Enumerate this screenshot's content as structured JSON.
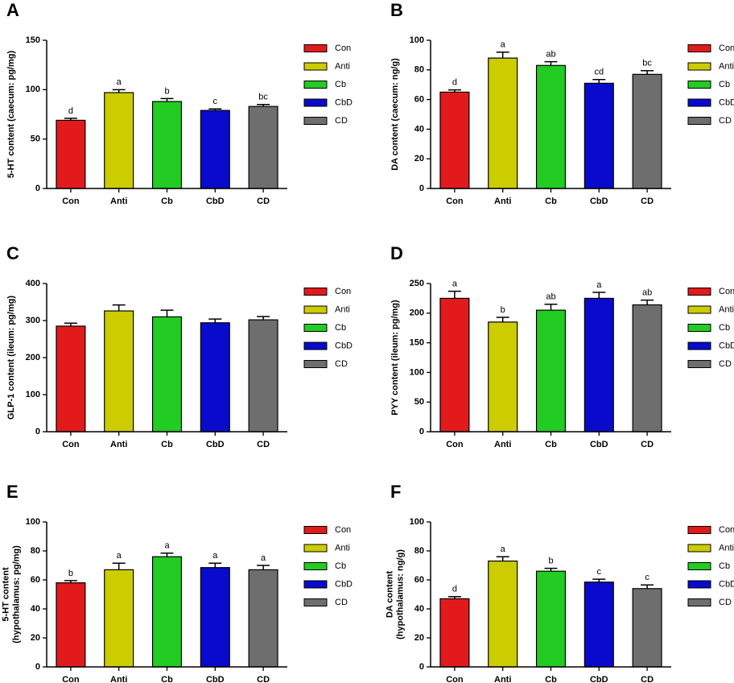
{
  "chart_data": [
    {
      "type": "bar",
      "label": "A",
      "ylabel": [
        "5-HT content (caecum: pg/mg)"
      ],
      "categories": [
        "Con",
        "Anti",
        "Cb",
        "CbD",
        "CD"
      ],
      "values": [
        69,
        97,
        88,
        79,
        83
      ],
      "errors": [
        2,
        3,
        3,
        1.5,
        2
      ],
      "annotations": [
        "d",
        "a",
        "b",
        "c",
        "bc"
      ],
      "colors": [
        "#e31a1c",
        "#cccc00",
        "#22cc22",
        "#0a0acd",
        "#6e6e6e"
      ],
      "ylim": [
        0,
        150
      ],
      "yticks": [
        0,
        50,
        100,
        150
      ]
    },
    {
      "type": "bar",
      "label": "B",
      "ylabel": [
        "DA content (caecum: ng/g)"
      ],
      "categories": [
        "Con",
        "Anti",
        "Cb",
        "CbD",
        "CD"
      ],
      "values": [
        65,
        88,
        83,
        71,
        77
      ],
      "errors": [
        1.5,
        4,
        2.5,
        2.5,
        2.5
      ],
      "annotations": [
        "d",
        "a",
        "ab",
        "cd",
        "bc"
      ],
      "colors": [
        "#e31a1c",
        "#cccc00",
        "#22cc22",
        "#0a0acd",
        "#6e6e6e"
      ],
      "ylim": [
        0,
        100
      ],
      "yticks": [
        0,
        20,
        40,
        60,
        80,
        100
      ]
    },
    {
      "type": "bar",
      "label": "C",
      "ylabel": [
        "GLP-1 content (ileum: pg/mg)"
      ],
      "categories": [
        "Con",
        "Anti",
        "Cb",
        "CbD",
        "CD"
      ],
      "values": [
        285,
        326,
        310,
        294,
        302
      ],
      "errors": [
        8,
        16,
        18,
        10,
        9
      ],
      "colors": [
        "#e31a1c",
        "#cccc00",
        "#22cc22",
        "#0a0acd",
        "#6e6e6e"
      ],
      "ylim": [
        0,
        400
      ],
      "yticks": [
        0,
        100,
        200,
        300,
        400
      ]
    },
    {
      "type": "bar",
      "label": "D",
      "ylabel": [
        "PYY content (ileum: pg/mg)"
      ],
      "categories": [
        "Con",
        "Anti",
        "Cb",
        "CbD",
        "CD"
      ],
      "values": [
        225,
        185,
        205,
        225,
        214
      ],
      "errors": [
        12,
        8,
        10,
        10,
        8
      ],
      "annotations": [
        "a",
        "b",
        "ab",
        "a",
        "ab"
      ],
      "colors": [
        "#e31a1c",
        "#cccc00",
        "#22cc22",
        "#0a0acd",
        "#6e6e6e"
      ],
      "ylim": [
        0,
        250
      ],
      "yticks": [
        0,
        50,
        100,
        150,
        200,
        250
      ]
    },
    {
      "type": "bar",
      "label": "E",
      "ylabel": [
        "5-HT content",
        "(hypothalamus: pg/mg)"
      ],
      "categories": [
        "Con",
        "Anti",
        "Cb",
        "CbD",
        "CD"
      ],
      "values": [
        58,
        67,
        76,
        68.5,
        67
      ],
      "errors": [
        1.5,
        4.5,
        2.5,
        3,
        3
      ],
      "annotations": [
        "b",
        "a",
        "a",
        "a",
        "a"
      ],
      "colors": [
        "#e31a1c",
        "#cccc00",
        "#22cc22",
        "#0a0acd",
        "#6e6e6e"
      ],
      "ylim": [
        0,
        100
      ],
      "yticks": [
        0,
        20,
        40,
        60,
        80,
        100
      ]
    },
    {
      "type": "bar",
      "label": "F",
      "ylabel": [
        "DA content",
        "(hypothalamus: ng/g)"
      ],
      "categories": [
        "Con",
        "Anti",
        "Cb",
        "CbD",
        "CD"
      ],
      "values": [
        47,
        73,
        66,
        58.5,
        54
      ],
      "errors": [
        1.5,
        3,
        2,
        2,
        2.5
      ],
      "annotations": [
        "d",
        "a",
        "b",
        "c",
        "c"
      ],
      "colors": [
        "#e31a1c",
        "#cccc00",
        "#22cc22",
        "#0a0acd",
        "#6e6e6e"
      ],
      "ylim": [
        0,
        100
      ],
      "yticks": [
        0,
        20,
        40,
        60,
        80,
        100
      ]
    }
  ]
}
